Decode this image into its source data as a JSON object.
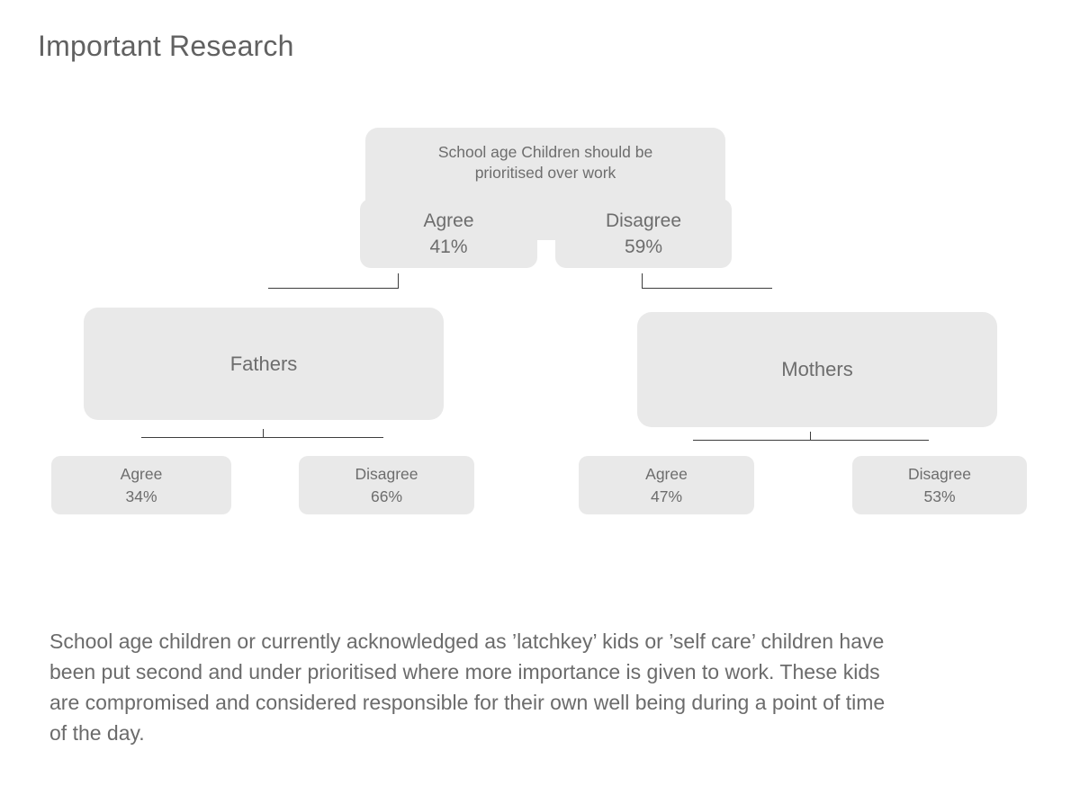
{
  "title": "Important Research",
  "diagram": {
    "root": {
      "label": "School age Children should be prioritised over work"
    },
    "overall": [
      {
        "label": "Agree",
        "value": "41%"
      },
      {
        "label": "Disagree",
        "value": "59%"
      }
    ],
    "groups": [
      {
        "label": "Fathers",
        "results": [
          {
            "label": "Agree",
            "value": "34%"
          },
          {
            "label": "Disagree",
            "value": "66%"
          }
        ]
      },
      {
        "label": "Mothers",
        "results": [
          {
            "label": "Agree",
            "value": "47%"
          },
          {
            "label": "Disagree",
            "value": "53%"
          }
        ]
      }
    ]
  },
  "summary": {
    "lines": [
      "School age children or currently acknowledged as ’latchkey’ kids or ’self care’ children have",
      "been put second and under prioritised where more importance is given to work. These kids",
      "are compromised and considered responsible for their own well being during a point of time",
      "of the day."
    ]
  },
  "colors": {
    "background": "#ffffff",
    "box_fill": "#e9e9e9",
    "box_text": "#6d6d6d",
    "title_text": "#616161",
    "paragraph_text": "#6b6b6b",
    "connector": "#3d3d3d"
  }
}
